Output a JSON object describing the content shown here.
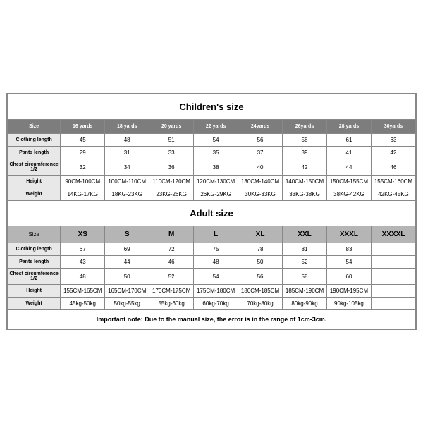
{
  "children": {
    "title": "Children's size",
    "headers": [
      "Size",
      "16 yards",
      "18 yards",
      "20 yards",
      "22 yards",
      "24yards",
      "26yards",
      "28 yards",
      "30yards"
    ],
    "rows": [
      {
        "label": "Clothing length",
        "v": [
          "45",
          "48",
          "51",
          "54",
          "56",
          "58",
          "61",
          "63"
        ]
      },
      {
        "label": "Pants length",
        "v": [
          "29",
          "31",
          "33",
          "35",
          "37",
          "39",
          "41",
          "42"
        ]
      },
      {
        "label": "Chest circumference 1/2",
        "v": [
          "32",
          "34",
          "36",
          "38",
          "40",
          "42",
          "44",
          "46"
        ]
      },
      {
        "label": "Height",
        "v": [
          "90CM-100CM",
          "100CM-110CM",
          "110CM-120CM",
          "120CM-130CM",
          "130CM-140CM",
          "140CM-150CM",
          "150CM-155CM",
          "155CM-160CM"
        ]
      },
      {
        "label": "Weight",
        "v": [
          "14KG-17KG",
          "18KG-23KG",
          "23KG-26KG",
          "26KG-29KG",
          "30KG-33KG",
          "33KG-38KG",
          "38KG-42KG",
          "42KG-45KG"
        ]
      }
    ]
  },
  "adult": {
    "title": "Adult size",
    "headers": [
      "Size",
      "XS",
      "S",
      "M",
      "L",
      "XL",
      "XXL",
      "XXXL",
      "XXXXL"
    ],
    "rows": [
      {
        "label": "Clothing length",
        "v": [
          "67",
          "69",
          "72",
          "75",
          "78",
          "81",
          "83",
          ""
        ]
      },
      {
        "label": "Pants length",
        "v": [
          "43",
          "44",
          "46",
          "48",
          "50",
          "52",
          "54",
          ""
        ]
      },
      {
        "label": "Chest circumference 1/2",
        "v": [
          "48",
          "50",
          "52",
          "54",
          "56",
          "58",
          "60",
          ""
        ]
      },
      {
        "label": "Height",
        "v": [
          "155CM-165CM",
          "165CM-170CM",
          "170CM-175CM",
          "175CM-180CM",
          "180CM-185CM",
          "185CM-190CM",
          "190CM-195CM",
          ""
        ]
      },
      {
        "label": "Weight",
        "v": [
          "45kg-50kg",
          "50kg-55kg",
          "55kg-60kg",
          "60kg-70kg",
          "70kg-80kg",
          "80kg-90kg",
          "90kg-105kg",
          ""
        ]
      }
    ]
  },
  "note": "Important note: Due to the manual size, the error is in the range of 1cm-3cm."
}
